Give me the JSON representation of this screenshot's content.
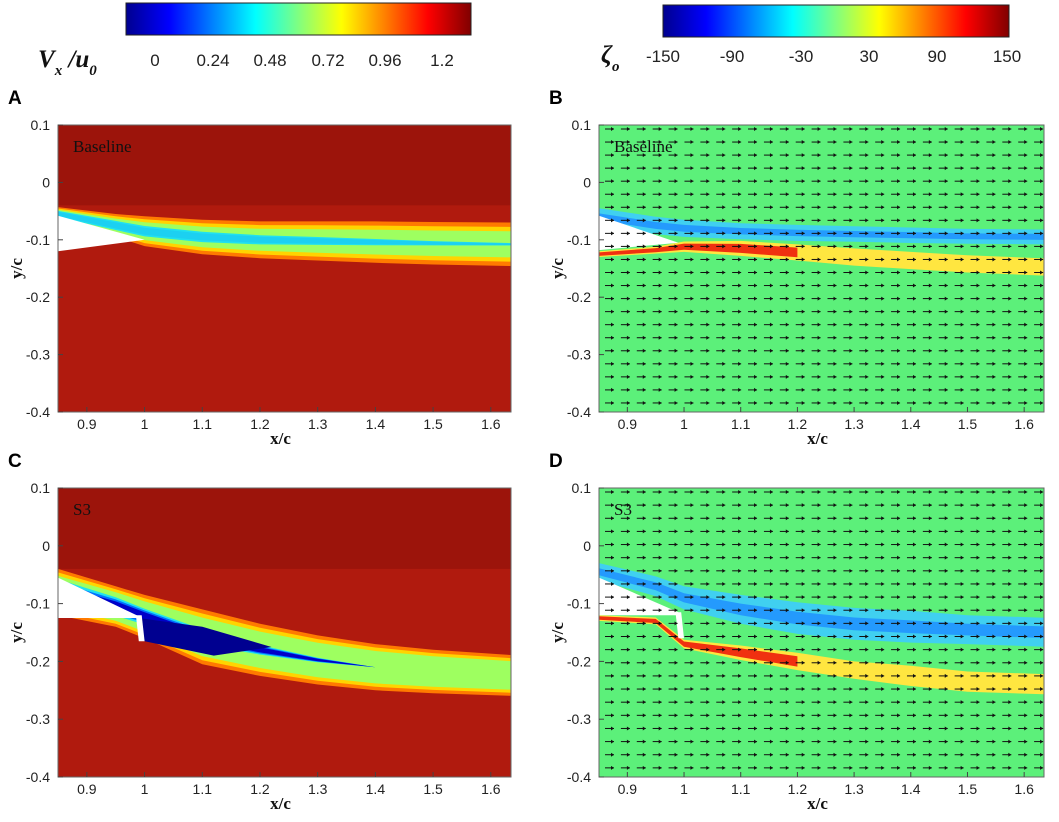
{
  "colormap_colors": [
    "#00008f",
    "#0000ff",
    "#0080ff",
    "#00ffff",
    "#80ff80",
    "#ffff00",
    "#ff8000",
    "#ff0000",
    "#800000"
  ],
  "colors": {
    "velocity_background": "#b01a0e",
    "velocity_far_field": "#8f100a",
    "vorticity_background": "#5cf07a",
    "airfoil": "#ffffff",
    "vector": "#111111"
  },
  "colorbars": [
    {
      "id": "velocity",
      "title_main": "V",
      "title_sub": "x",
      "title_mid": " /u",
      "title_sub2": "0",
      "ticks": [
        "0",
        "0.24",
        "0.48",
        "0.72",
        "0.96",
        "1.2"
      ]
    },
    {
      "id": "vorticity",
      "title_main": "ζ",
      "title_sub": "o",
      "ticks": [
        "-150",
        "-90",
        "-30",
        "30",
        "90",
        "150"
      ]
    }
  ],
  "chart_data": [
    {
      "type": "heatmap",
      "panel_label": "A",
      "case_label": "Baseline",
      "field": "velocity",
      "xlabel": "x/c",
      "ylabel": "y/c",
      "xlim": [
        0.85,
        1.635
      ],
      "ylim": [
        -0.4,
        0.1
      ],
      "xticks": [
        "0.9",
        "1",
        "1.1",
        "1.2",
        "1.3",
        "1.4",
        "1.5",
        "1.6"
      ],
      "yticks": [
        "0.1",
        "0",
        "-0.1",
        "-0.2",
        "-0.3",
        "-0.4"
      ]
    },
    {
      "type": "heatmap",
      "panel_label": "B",
      "case_label": "Baseline",
      "field": "vorticity",
      "xlabel": "x/c",
      "ylabel": "y/c",
      "xlim": [
        0.85,
        1.635
      ],
      "ylim": [
        -0.4,
        0.1
      ],
      "xticks": [
        "0.9",
        "1",
        "1.1",
        "1.2",
        "1.3",
        "1.4",
        "1.5",
        "1.6"
      ],
      "yticks": [
        "0.1",
        "0",
        "-0.1",
        "-0.2",
        "-0.3",
        "-0.4"
      ]
    },
    {
      "type": "heatmap",
      "panel_label": "C",
      "case_label": "S3",
      "field": "velocity",
      "xlabel": "x/c",
      "ylabel": "y/c",
      "xlim": [
        0.85,
        1.635
      ],
      "ylim": [
        -0.4,
        0.1
      ],
      "xticks": [
        "0.9",
        "1",
        "1.1",
        "1.2",
        "1.3",
        "1.4",
        "1.5",
        "1.6"
      ],
      "yticks": [
        "0.1",
        "0",
        "-0.1",
        "-0.2",
        "-0.3",
        "-0.4"
      ]
    },
    {
      "type": "heatmap",
      "panel_label": "D",
      "case_label": "S3",
      "field": "vorticity",
      "xlabel": "x/c",
      "ylabel": "y/c",
      "xlim": [
        0.85,
        1.635
      ],
      "ylim": [
        -0.4,
        0.1
      ],
      "xticks": [
        "0.9",
        "1",
        "1.1",
        "1.2",
        "1.3",
        "1.4",
        "1.5",
        "1.6"
      ],
      "yticks": [
        "0.1",
        "0",
        "-0.1",
        "-0.2",
        "-0.3",
        "-0.4"
      ]
    }
  ]
}
